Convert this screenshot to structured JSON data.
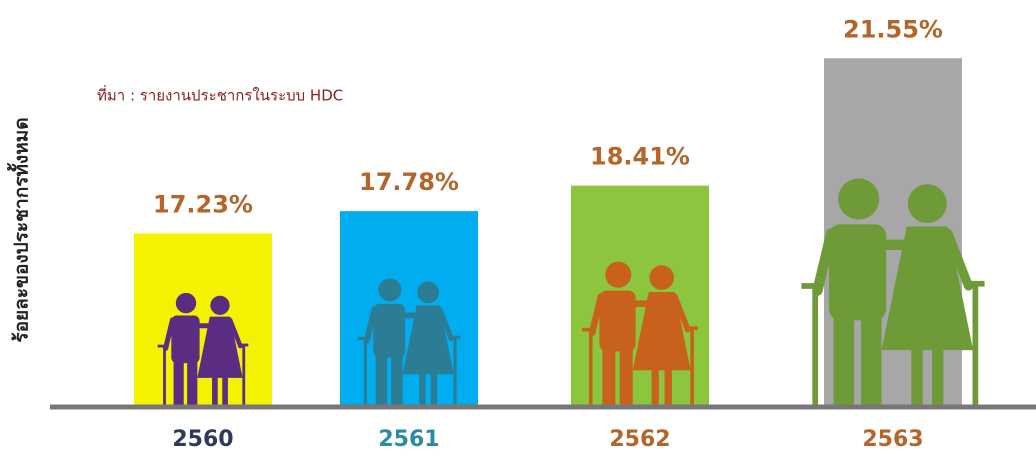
{
  "chart_data": {
    "type": "bar",
    "y_axis_label": "ร้อยละของประชากรทั้งหมด",
    "source_note": "ที่มา : รายงานประชากรในระบบ HDC",
    "categories": [
      "2560",
      "2561",
      "2562",
      "2563"
    ],
    "values": [
      17.23,
      17.78,
      18.41,
      21.55
    ],
    "value_labels": [
      "17.23%",
      "17.78%",
      "18.41%",
      "21.55%"
    ],
    "colors": [
      "#f5f200",
      "#00aeef",
      "#8cc63f",
      "#a7a7a7"
    ],
    "figure_colors": [
      "#5a2d82",
      "#2b7d96",
      "#c8611c",
      "#6e9a37"
    ],
    "category_colors": [
      "#2e3a58",
      "#2b8aa6",
      "#b5652a",
      "#b5652a"
    ],
    "value_label_color": "#b5652a",
    "ylim": [
      13,
      22
    ]
  }
}
